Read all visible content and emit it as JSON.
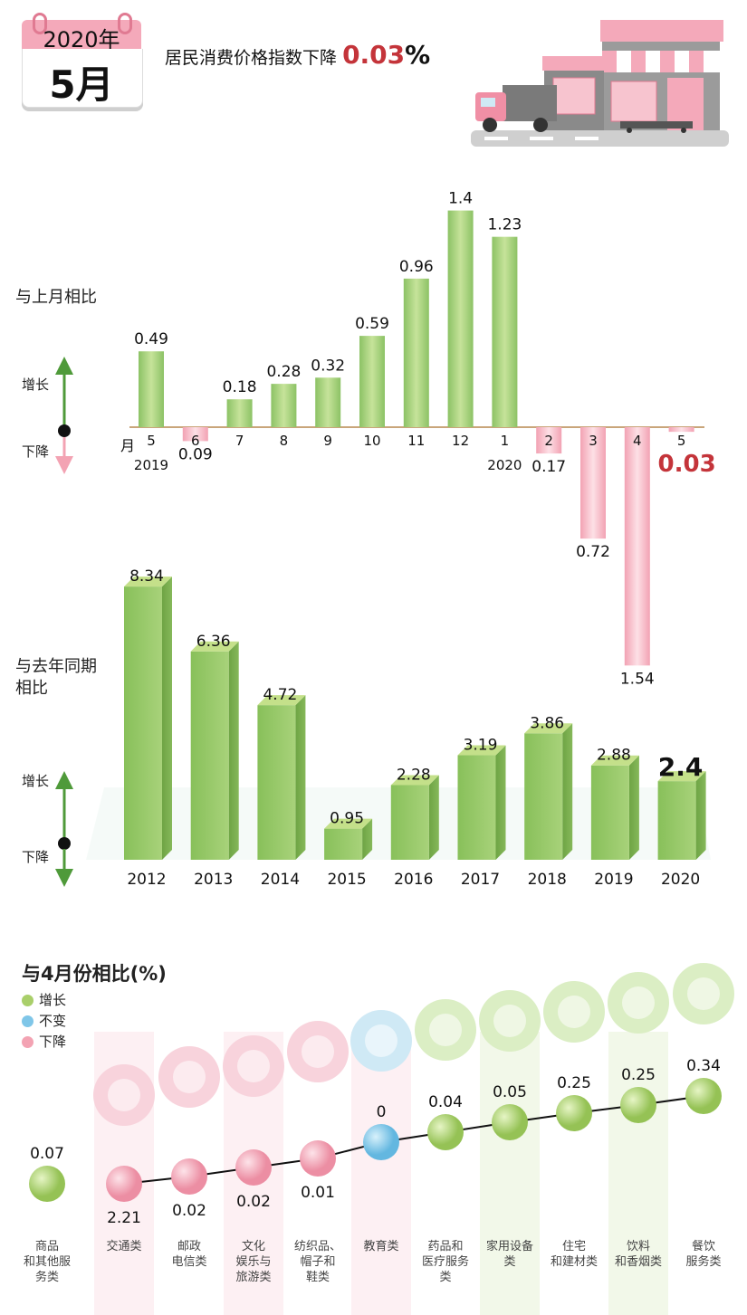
{
  "header": {
    "year": "2020年",
    "month": "5月",
    "headline_text": "居民消费价格指数下降",
    "headline_value": "0.03",
    "headline_pct": "%"
  },
  "mom_section": {
    "title": "与上月相比",
    "increase_label": "增长",
    "decrease_label": "下降",
    "month_unit": "月",
    "year_2019": "2019",
    "year_2020": "2020"
  },
  "yoy_section": {
    "title_line1": "与去年同期",
    "title_line2": "相比",
    "increase_label": "增长",
    "decrease_label": "下降"
  },
  "cat_section": {
    "title": "与4月份相比(%)",
    "legend": [
      {
        "label": "增长",
        "color": "#a9cf6a"
      },
      {
        "label": "不变",
        "color": "#7fc6e8"
      },
      {
        "label": "下降",
        "color": "#f3a3b3"
      }
    ]
  },
  "chart_data": [
    {
      "type": "bar",
      "title": "与上月相比",
      "categories": [
        "5",
        "6",
        "7",
        "8",
        "9",
        "10",
        "11",
        "12",
        "1",
        "2",
        "3",
        "4",
        "5"
      ],
      "values": [
        0.49,
        -0.09,
        0.18,
        0.28,
        0.32,
        0.59,
        0.96,
        1.4,
        1.23,
        -0.17,
        -0.72,
        -1.54,
        -0.03
      ],
      "labels": [
        "0.49",
        "0.09",
        "0.18",
        "0.28",
        "0.32",
        "0.59",
        "0.96",
        "1.4",
        "1.23",
        "0.17",
        "0.72",
        "1.54",
        "0.03"
      ],
      "years": {
        "0": "2019",
        "8": "2020"
      },
      "colors": {
        "increase": "#a9cf6a",
        "decrease": "#f3a3b3"
      }
    },
    {
      "type": "bar",
      "title": "与去年同期相比",
      "categories": [
        "2012",
        "2013",
        "2014",
        "2015",
        "2016",
        "2017",
        "2018",
        "2019",
        "2020"
      ],
      "values": [
        8.34,
        6.36,
        4.72,
        0.95,
        2.28,
        3.19,
        3.86,
        2.88,
        2.4
      ],
      "labels": [
        "8.34",
        "6.36",
        "4.72",
        "0.95",
        "2.28",
        "3.19",
        "3.86",
        "2.88",
        "2.4"
      ]
    },
    {
      "type": "scatter",
      "title": "与4月份相比(%)",
      "categories": [
        "商品\n和其他服\n务类",
        "交通类",
        "邮政\n电信类",
        "文化\n娱乐与\n旅游类",
        "纺织品、\n帽子和\n鞋类",
        "教育类",
        "药品和\n医疗服务\n类",
        "家用设备\n类",
        "住宅\n和建材类",
        "饮料\n和香烟类",
        "餐饮\n服务类"
      ],
      "values": [
        0.07,
        -2.21,
        -0.02,
        -0.02,
        -0.01,
        0,
        0.04,
        0.05,
        0.25,
        0.25,
        0.34
      ],
      "labels": [
        "0.07",
        "2.21",
        "0.02",
        "0.02",
        "0.01",
        "0",
        "0.04",
        "0.05",
        "0.25",
        "0.25",
        "0.34"
      ],
      "status": [
        "up",
        "down",
        "down",
        "down",
        "down",
        "flat",
        "up",
        "up",
        "up",
        "up",
        "up"
      ],
      "icons": [
        "",
        "traffic-light-icon",
        "signal-tower-icon",
        "video-play-icon",
        "clothing-icon",
        "graduation-cap-icon",
        "medicine-pill-icon",
        "washing-machine-icon",
        "house-icon",
        "beverage-cigarette-icon",
        "food-plate-icon"
      ]
    }
  ]
}
